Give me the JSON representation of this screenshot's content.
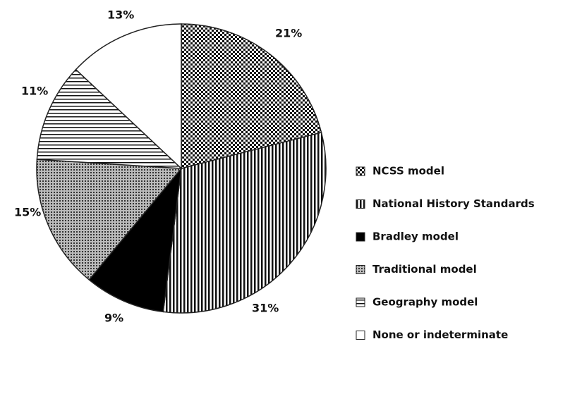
{
  "chart_data": {
    "type": "pie",
    "categories": [
      "NCSS model",
      "National History Standards",
      "Bradley model",
      "Traditional model",
      "Geography model",
      "None or indeterminate"
    ],
    "values": [
      21,
      31,
      9,
      15,
      11,
      13
    ],
    "value_labels": [
      "21%",
      "31%",
      "9%",
      "15%",
      "11%",
      "13%"
    ],
    "patterns": [
      "checker",
      "vertical",
      "solid",
      "dots",
      "horizontal",
      "none"
    ],
    "legend": "right"
  }
}
